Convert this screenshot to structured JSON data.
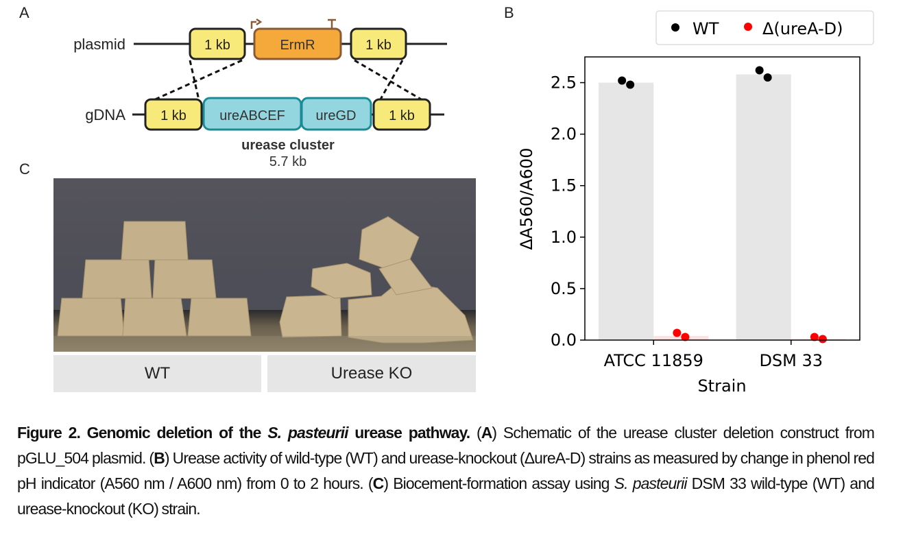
{
  "panels": {
    "a": "A",
    "b": "B",
    "c": "C"
  },
  "diagram": {
    "plasmid_label": "plasmid",
    "gdna_label": "gDNA",
    "homology_arm": "1 kb",
    "ermr": "ErmR",
    "ureabcef": "ureABCEF",
    "uregd": "ureGD",
    "cluster_title": "urease cluster",
    "cluster_size": "5.7 kb",
    "colors": {
      "arm": "#f7e97a",
      "ermr": "#f5a93a",
      "ure": "#93d6df",
      "ure_border": "#1a8a94",
      "promoter": "#8a5a36"
    }
  },
  "photo": {
    "wt_label": "WT",
    "ko_label": "Urease KO"
  },
  "chart_data": {
    "type": "bar",
    "categories": [
      "ATCC 11859",
      "DSM 33"
    ],
    "xlabel": "Strain",
    "ylabel": "ΔA560/A600",
    "ylim": [
      0,
      2.75
    ],
    "yticks": [
      "0.0",
      "0.5",
      "1.0",
      "1.5",
      "2.0",
      "2.5"
    ],
    "grid": false,
    "legend_placement": "top-right (outside)",
    "series": [
      {
        "name": "WT",
        "color": "#000000",
        "bar_color": "#e6e6e6",
        "values": [
          2.5,
          2.58
        ],
        "points": [
          [
            2.52,
            2.48
          ],
          [
            2.62,
            2.55
          ]
        ]
      },
      {
        "name": "Δ(ureA-D)",
        "color": "#ff0000",
        "bar_color": "#fbe3e3",
        "values": [
          0.04,
          0.01
        ],
        "points": [
          [
            0.07,
            0.03
          ],
          [
            0.03,
            0.01
          ]
        ]
      }
    ]
  },
  "caption": {
    "bold1": "Figure 2. Genomic deletion of the ",
    "bold_italic": "S. pasteurii",
    "bold2": " urease pathway.",
    "p1": " (",
    "a": "A",
    "t1": ") Schematic of the urease cluster deletion construct from pGLU_504 plasmid. (",
    "b": "B",
    "t2": ") Urease activity of wild-type (WT) and urease-knockout (ΔureA-D) strains as measured by change in phenol red pH indicator (A560 nm / A600 nm) from 0 to 2 hours. (",
    "c": "C",
    "t3": ") Biocement-formation assay using ",
    "italic": "S. pasteurii",
    "t4": " DSM 33 wild-type (WT) and urease-knockout (KO) strain."
  }
}
